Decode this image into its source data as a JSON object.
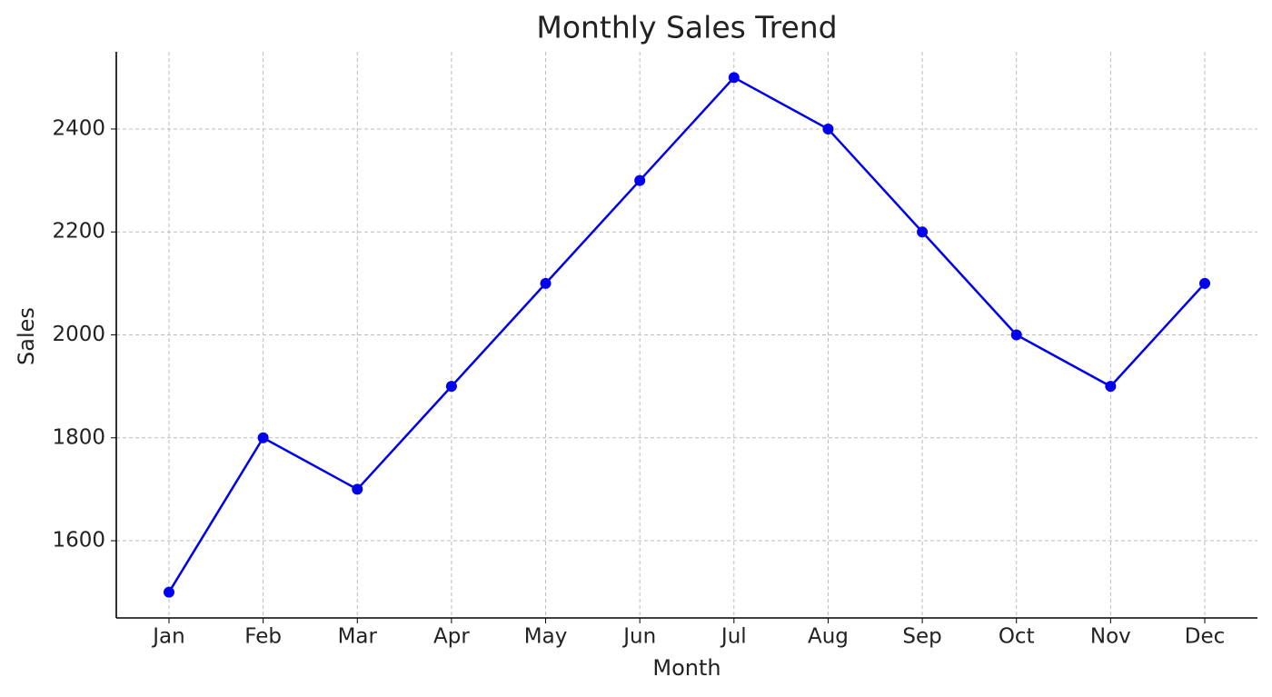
{
  "chart_data": {
    "type": "line",
    "title": "Monthly Sales Trend",
    "x_label": "Month",
    "y_label": "Sales",
    "categories": [
      "Jan",
      "Feb",
      "Mar",
      "Apr",
      "May",
      "Jun",
      "Jul",
      "Aug",
      "Sep",
      "Oct",
      "Nov",
      "Dec"
    ],
    "series": [
      {
        "name": "Sales",
        "color": "#0000ee",
        "values": [
          1500,
          1800,
          1700,
          1900,
          2100,
          2300,
          2500,
          2400,
          2200,
          2000,
          1900,
          2100
        ]
      }
    ],
    "ylim": [
      1450,
      2550
    ],
    "yticks": [
      1600,
      1800,
      2000,
      2200,
      2400
    ],
    "grid": true
  }
}
